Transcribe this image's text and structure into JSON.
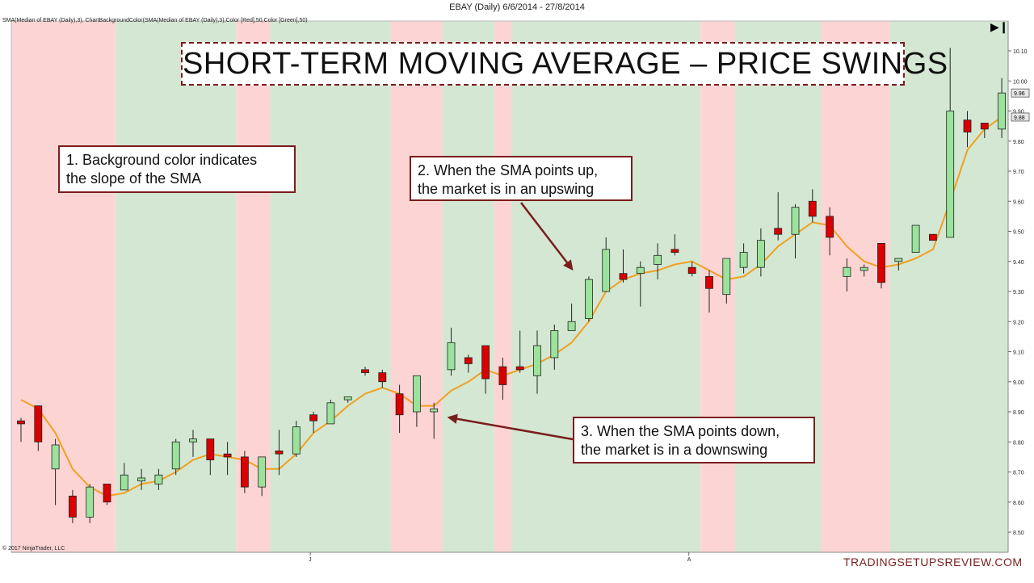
{
  "window": {
    "title": "EBAY (Daily)  6/6/2014 - 27/8/2014"
  },
  "indicator_label": "SMA(Median of EBAY (Daily),3), ChartBackgroundColor(SMA(Median of EBAY (Daily),3),Color [Red],50,Color [Green],50)",
  "copyright": "© 2017 NinjaTrader, LLC",
  "title": "SHORT-TERM MOVING AVERAGE – PRICE SWINGS",
  "annotations": {
    "note1": {
      "line1": "1. Background color indicates",
      "line2": "the slope of the SMA"
    },
    "note2": {
      "line1": "2. When the SMA points up,",
      "line2": "the market is in an upswing"
    },
    "note3": {
      "line1": "3. When the SMA points down,",
      "line2": "the market is in a downswing"
    }
  },
  "brand": "TRADINGSETUPSREVIEW.COM",
  "colors": {
    "up_body": "#9be39b",
    "down_body": "#d90000",
    "sma": "#f0a020",
    "bg_up": "#d3e7d3",
    "bg_down": "#fdd4d4",
    "annotation": "#7a1d1d"
  },
  "chart_data": {
    "type": "candlestick",
    "title": "",
    "xlabel": "",
    "ylabel": "",
    "ylim": [
      8.46,
      10.17
    ],
    "yticks": [
      "8.50",
      "8.60",
      "8.70",
      "8.80",
      "8.90",
      "9.00",
      "9.10",
      "9.20",
      "9.30",
      "9.40",
      "9.50",
      "9.60",
      "9.70",
      "9.80",
      "9.90",
      "10.00",
      "10.10"
    ],
    "last_price_labels": [
      "9.96",
      "9.88"
    ],
    "month_markers": [
      {
        "label": "J",
        "bar": 17
      },
      {
        "label": "A",
        "bar": 39
      }
    ],
    "candles": [
      {
        "o": 8.87,
        "h": 8.88,
        "l": 8.8,
        "c": 8.86
      },
      {
        "o": 8.92,
        "h": 8.92,
        "l": 8.77,
        "c": 8.8
      },
      {
        "o": 8.71,
        "h": 8.81,
        "l": 8.59,
        "c": 8.79
      },
      {
        "o": 8.62,
        "h": 8.64,
        "l": 8.53,
        "c": 8.55
      },
      {
        "o": 8.55,
        "h": 8.66,
        "l": 8.53,
        "c": 8.65
      },
      {
        "o": 8.66,
        "h": 8.66,
        "l": 8.59,
        "c": 8.6
      },
      {
        "o": 8.64,
        "h": 8.73,
        "l": 8.64,
        "c": 8.69
      },
      {
        "o": 8.67,
        "h": 8.71,
        "l": 8.64,
        "c": 8.68
      },
      {
        "o": 8.66,
        "h": 8.71,
        "l": 8.64,
        "c": 8.69
      },
      {
        "o": 8.71,
        "h": 8.81,
        "l": 8.69,
        "c": 8.8
      },
      {
        "o": 8.8,
        "h": 8.84,
        "l": 8.75,
        "c": 8.81
      },
      {
        "o": 8.81,
        "h": 8.81,
        "l": 8.69,
        "c": 8.74
      },
      {
        "o": 8.76,
        "h": 8.8,
        "l": 8.69,
        "c": 8.75
      },
      {
        "o": 8.75,
        "h": 8.77,
        "l": 8.63,
        "c": 8.65
      },
      {
        "o": 8.65,
        "h": 8.75,
        "l": 8.62,
        "c": 8.75
      },
      {
        "o": 8.77,
        "h": 8.84,
        "l": 8.69,
        "c": 8.76
      },
      {
        "o": 8.76,
        "h": 8.87,
        "l": 8.75,
        "c": 8.85
      },
      {
        "o": 8.89,
        "h": 8.9,
        "l": 8.83,
        "c": 8.87
      },
      {
        "o": 8.86,
        "h": 8.94,
        "l": 8.86,
        "c": 8.93
      },
      {
        "o": 8.94,
        "h": 8.95,
        "l": 8.93,
        "c": 8.95
      },
      {
        "o": 9.04,
        "h": 9.05,
        "l": 9.02,
        "c": 9.03
      },
      {
        "o": 9.03,
        "h": 9.04,
        "l": 8.98,
        "c": 9.0
      },
      {
        "o": 8.96,
        "h": 8.99,
        "l": 8.83,
        "c": 8.89
      },
      {
        "o": 8.9,
        "h": 9.01,
        "l": 8.85,
        "c": 9.02
      },
      {
        "o": 8.9,
        "h": 8.93,
        "l": 8.81,
        "c": 8.91
      },
      {
        "o": 9.04,
        "h": 9.18,
        "l": 9.02,
        "c": 9.13
      },
      {
        "o": 9.08,
        "h": 9.09,
        "l": 9.03,
        "c": 9.06
      },
      {
        "o": 9.12,
        "h": 9.12,
        "l": 8.96,
        "c": 9.01
      },
      {
        "o": 9.05,
        "h": 9.08,
        "l": 8.94,
        "c": 8.99
      },
      {
        "o": 9.05,
        "h": 9.17,
        "l": 9.03,
        "c": 9.04
      },
      {
        "o": 9.02,
        "h": 9.17,
        "l": 8.96,
        "c": 9.12
      },
      {
        "o": 9.08,
        "h": 9.19,
        "l": 9.04,
        "c": 9.17
      },
      {
        "o": 9.17,
        "h": 9.26,
        "l": 9.17,
        "c": 9.2
      },
      {
        "o": 9.21,
        "h": 9.35,
        "l": 9.2,
        "c": 9.34
      },
      {
        "o": 9.3,
        "h": 9.48,
        "l": 9.3,
        "c": 9.44
      },
      {
        "o": 9.36,
        "h": 9.44,
        "l": 9.33,
        "c": 9.34
      },
      {
        "o": 9.36,
        "h": 9.4,
        "l": 9.25,
        "c": 9.38
      },
      {
        "o": 9.39,
        "h": 9.46,
        "l": 9.34,
        "c": 9.42
      },
      {
        "o": 9.44,
        "h": 9.49,
        "l": 9.42,
        "c": 9.43
      },
      {
        "o": 9.38,
        "h": 9.4,
        "l": 9.35,
        "c": 9.36
      },
      {
        "o": 9.35,
        "h": 9.37,
        "l": 9.23,
        "c": 9.31
      },
      {
        "o": 9.29,
        "h": 9.4,
        "l": 9.26,
        "c": 9.41
      },
      {
        "o": 9.38,
        "h": 9.46,
        "l": 9.36,
        "c": 9.43
      },
      {
        "o": 9.38,
        "h": 9.51,
        "l": 9.35,
        "c": 9.47
      },
      {
        "o": 9.51,
        "h": 9.63,
        "l": 9.47,
        "c": 9.49
      },
      {
        "o": 9.49,
        "h": 9.59,
        "l": 9.41,
        "c": 9.58
      },
      {
        "o": 9.6,
        "h": 9.64,
        "l": 9.53,
        "c": 9.55
      },
      {
        "o": 9.55,
        "h": 9.58,
        "l": 9.42,
        "c": 9.48
      },
      {
        "o": 9.35,
        "h": 9.41,
        "l": 9.3,
        "c": 9.38
      },
      {
        "o": 9.37,
        "h": 9.39,
        "l": 9.35,
        "c": 9.38
      },
      {
        "o": 9.46,
        "h": 9.46,
        "l": 9.31,
        "c": 9.33
      },
      {
        "o": 9.4,
        "h": 9.41,
        "l": 9.37,
        "c": 9.41
      },
      {
        "o": 9.43,
        "h": 9.52,
        "l": 9.43,
        "c": 9.52
      },
      {
        "o": 9.49,
        "h": 9.49,
        "l": 9.47,
        "c": 9.47
      },
      {
        "o": 9.48,
        "h": 10.11,
        "l": 9.48,
        "c": 9.9
      },
      {
        "o": 9.87,
        "h": 9.9,
        "l": 9.78,
        "c": 9.83
      },
      {
        "o": 9.86,
        "h": 9.86,
        "l": 9.81,
        "c": 9.84
      },
      {
        "o": 9.84,
        "h": 10.01,
        "l": 9.81,
        "c": 9.96
      }
    ],
    "sma": [
      8.94,
      8.91,
      8.83,
      8.71,
      8.65,
      8.62,
      8.63,
      8.66,
      8.67,
      8.7,
      8.74,
      8.76,
      8.75,
      8.74,
      8.71,
      8.71,
      8.76,
      8.83,
      8.87,
      8.92,
      8.96,
      8.98,
      8.96,
      8.92,
      8.92,
      8.97,
      9.0,
      9.04,
      9.02,
      9.04,
      9.06,
      9.09,
      9.13,
      9.2,
      9.3,
      9.34,
      9.36,
      9.37,
      9.39,
      9.4,
      9.37,
      9.34,
      9.35,
      9.39,
      9.45,
      9.49,
      9.53,
      9.52,
      9.45,
      9.4,
      9.38,
      9.39,
      9.41,
      9.44,
      9.6,
      9.77,
      9.84,
      9.88
    ],
    "background_segments": [
      {
        "from": 0,
        "to": 5,
        "dir": "down"
      },
      {
        "from": 6,
        "to": 12,
        "dir": "up"
      },
      {
        "from": 13,
        "to": 14,
        "dir": "down"
      },
      {
        "from": 15,
        "to": 21,
        "dir": "up"
      },
      {
        "from": 22,
        "to": 24,
        "dir": "down"
      },
      {
        "from": 25,
        "to": 27,
        "dir": "up"
      },
      {
        "from": 28,
        "to": 28,
        "dir": "down"
      },
      {
        "from": 29,
        "to": 39,
        "dir": "up"
      },
      {
        "from": 40,
        "to": 41,
        "dir": "down"
      },
      {
        "from": 42,
        "to": 46,
        "dir": "up"
      },
      {
        "from": 47,
        "to": 50,
        "dir": "down"
      },
      {
        "from": 51,
        "to": 57,
        "dir": "up"
      }
    ]
  }
}
